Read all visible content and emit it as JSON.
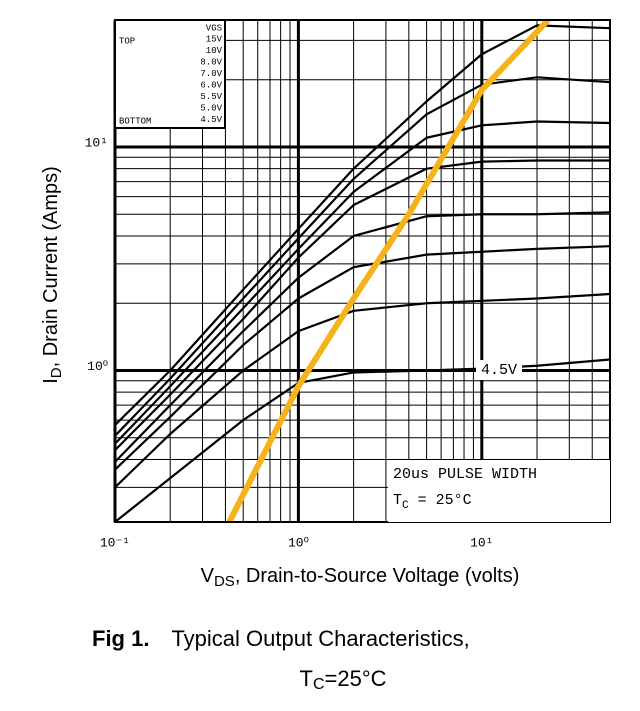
{
  "chart_data": {
    "type": "line",
    "log_x": true,
    "log_y": true,
    "grid": true,
    "x_label": {
      "main": "V",
      "sub": "DS",
      "rest": ", Drain-to-Source Voltage (volts)"
    },
    "y_label": {
      "main": "I",
      "sub": "D",
      "rest": ", Drain Current (Amps)"
    },
    "xlim": [
      0.1,
      50
    ],
    "ylim": [
      0.21,
      37
    ],
    "xticks": [
      {
        "value": 0.1,
        "label": "10⁻¹"
      },
      {
        "value": 1,
        "label": "10⁰"
      },
      {
        "value": 10,
        "label": "10¹"
      }
    ],
    "yticks": [
      {
        "value": 1,
        "label": "10⁰"
      },
      {
        "value": 10,
        "label": "10¹"
      }
    ],
    "legend": {
      "header": "VGS",
      "top": "TOP",
      "bottom": "BOTTOM",
      "corner": "top-left"
    },
    "x": [
      0.1,
      0.2,
      0.5,
      1,
      2,
      5,
      10,
      20,
      50
    ],
    "series": [
      {
        "name": "15V",
        "color": "#000000",
        "values": [
          0.57,
          1.0,
          2.3,
          4.3,
          8.0,
          16,
          26,
          35,
          34
        ]
      },
      {
        "name": "10V",
        "color": "#000000",
        "values": [
          0.51,
          0.92,
          2.1,
          3.9,
          7.2,
          14,
          19,
          20.5,
          19.5
        ]
      },
      {
        "name": "8.0V",
        "color": "#000000",
        "values": [
          0.47,
          0.85,
          1.9,
          3.5,
          6.3,
          11,
          12.5,
          13,
          12.8
        ]
      },
      {
        "name": "7.0V",
        "color": "#000000",
        "values": [
          0.44,
          0.78,
          1.7,
          3.2,
          5.5,
          8.0,
          8.6,
          8.7,
          8.7
        ]
      },
      {
        "name": "6.0V",
        "color": "#000000",
        "values": [
          0.39,
          0.7,
          1.5,
          2.6,
          4.0,
          4.9,
          5.0,
          5.0,
          5.1
        ]
      },
      {
        "name": "5.5V",
        "color": "#000000",
        "values": [
          0.36,
          0.62,
          1.3,
          2.1,
          2.9,
          3.3,
          3.4,
          3.5,
          3.6
        ]
      },
      {
        "name": "5.0V",
        "color": "#000000",
        "values": [
          0.3,
          0.52,
          1.0,
          1.5,
          1.85,
          2.0,
          2.05,
          2.1,
          2.2
        ]
      },
      {
        "name": "4.5V",
        "color": "#000000",
        "values": [
          0.21,
          0.33,
          0.6,
          0.88,
          0.98,
          1.0,
          1.02,
          1.05,
          1.12
        ]
      },
      {
        "color": "#f5b21b",
        "x": [
          0.42,
          1,
          2,
          4,
          10,
          23
        ],
        "values": [
          0.21,
          0.85,
          2.1,
          5,
          18,
          37
        ]
      }
    ],
    "annotations": {
      "curve_label": "4.5V",
      "pulse": "20us PULSE WIDTH",
      "tc": {
        "main": "T",
        "sub": "C",
        "rest": " = 25°C"
      }
    },
    "caption": {
      "fig": "Fig 1.",
      "text": "Typical Output Characteristics,",
      "line2": {
        "main": "T",
        "sub": "C",
        "rest": "=25°C"
      }
    }
  }
}
